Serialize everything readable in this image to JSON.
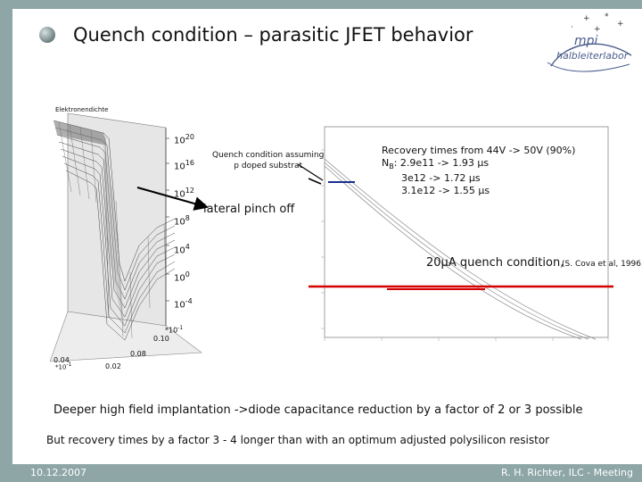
{
  "slide": {
    "title": "Quench condition – parasitic JFET behavior",
    "logo": {
      "line1": "mpi",
      "line2": "halbleiterlabor"
    },
    "left_plot": {
      "axis_title": "Elektronendichte",
      "ticks": [
        "10",
        "10",
        "10",
        "10",
        "10",
        "10",
        "10"
      ],
      "exps": [
        "20",
        "16",
        "12",
        "8",
        "4",
        "0",
        "-4"
      ],
      "x_ticks": [
        "0.10",
        "0.08",
        "0.04",
        "0.02"
      ],
      "x_mult1": "*10",
      "x_mult1_exp": "-1",
      "x_mult2": "*10",
      "x_mult2_exp": "-1"
    },
    "note_substrate": {
      "l1": "Quench condition assuming",
      "l2": "p doped substrat"
    },
    "recovery": {
      "l1": "Recovery times from 44V -> 50V (90%)",
      "l2_pre": "N",
      "l2_sub": "B",
      "l2_post": ": 2.9e11 -> 1.93 µs",
      "l3": "3e12   -> 1.72 µs",
      "l4": "3.1e12 -> 1.55 µs"
    },
    "lateral_pinch": "lateral pinch off",
    "quench_label": "20µA quench condition,",
    "cova_ref": "(S. Cova et al, 1996)",
    "text_line1": "Deeper high field implantation ->diode capacitance reduction by a factor of 2 or 3 possible",
    "text_line2": "But recovery times by a factor 3 - 4 longer than with an optimum adjusted polysilicon resistor",
    "footer": {
      "date": "10.12.2007",
      "author": "R. H. Richter, ILC - Meeting"
    }
  },
  "colors": {
    "accent_red": "#d40000",
    "accent_blue": "#1a2f8f",
    "frame": "#8ea6a6"
  }
}
